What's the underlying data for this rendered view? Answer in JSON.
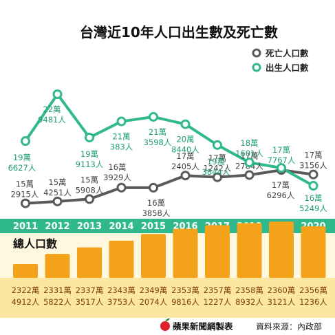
{
  "chart_data": {
    "type": "line",
    "title": "台灣近10年人口出生數及死亡數",
    "categories": [
      "2011",
      "2012",
      "2013",
      "2014",
      "2015",
      "2016",
      "2017",
      "2018",
      "2019",
      "2020"
    ],
    "series": [
      {
        "name": "死亡人口數",
        "color": "#5a5a5a",
        "values": [
          152915,
          154251,
          155908,
          163929,
          163858,
          172405,
          171242,
          172784,
          176296,
          173156
        ],
        "labels": [
          [
            "15萬",
            "2915人"
          ],
          [
            "15萬",
            "4251人"
          ],
          [
            "15萬",
            "5908人"
          ],
          [
            "16萬",
            "3929人"
          ],
          [
            "16萬",
            "3858人"
          ],
          [
            "17萬",
            "2405人"
          ],
          [
            "17萬",
            "1242人"
          ],
          [
            "17萬",
            "2784人"
          ],
          [
            "17萬",
            "6296人"
          ],
          [
            "17萬",
            "3156人"
          ]
        ]
      },
      {
        "name": "出生人口數",
        "color": "#2fb98c",
        "values": [
          196627,
          229481,
          199113,
          210383,
          213598,
          208440,
          193844,
          181601,
          177767,
          165249
        ],
        "labels": [
          [
            "19萬",
            "6627人"
          ],
          [
            "22萬",
            "9481人"
          ],
          [
            "19萬",
            "9113人"
          ],
          [
            "21萬",
            "383人"
          ],
          [
            "21萬",
            "3598人"
          ],
          [
            "20萬",
            "8440人"
          ],
          [
            "19萬",
            "3844人"
          ],
          [
            "18萬",
            "1601人"
          ],
          [
            "17萬",
            "7767人"
          ],
          [
            "16萬",
            "5249人"
          ]
        ]
      }
    ],
    "population": {
      "title": "總人口數",
      "values": [
        23224912,
        23315822,
        23373517,
        23433753,
        23492074,
        23539816,
        23571227,
        23588932,
        23603121,
        23561236
      ],
      "labels": [
        [
          "2322萬",
          "4912人"
        ],
        [
          "2331萬",
          "5822人"
        ],
        [
          "2337萬",
          "3517人"
        ],
        [
          "2343萬",
          "3753人"
        ],
        [
          "2349萬",
          "2074人"
        ],
        [
          "2353萬",
          "9816人"
        ],
        [
          "2357萬",
          "1227人"
        ],
        [
          "2358萬",
          "8932人"
        ],
        [
          "2360萬",
          "3121人"
        ],
        [
          "2356萬",
          "1236人"
        ]
      ]
    }
  },
  "footer": {
    "brand": "蘋果新聞網製表",
    "source": "資料來源：內政部"
  },
  "colors": {
    "death": "#5a5a5a",
    "birth": "#2fb98c",
    "year_band": "#2fb98c",
    "bar_fill": "#f5a21b",
    "pop_band": "#fde6a0",
    "bar_band": "#fff7df",
    "logo": "#e0202a"
  }
}
